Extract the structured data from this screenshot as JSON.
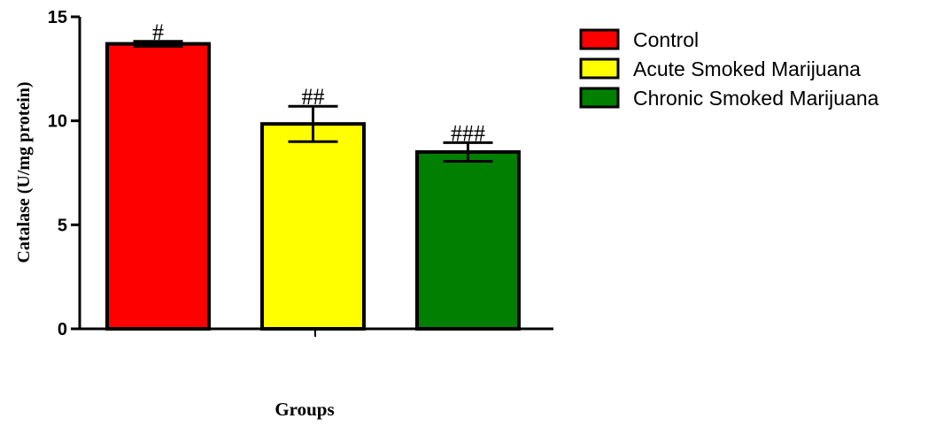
{
  "chart_data": {
    "type": "bar",
    "ylabel": "Catalase (U/mg protein)",
    "xlabel": "Groups",
    "ylim": [
      0,
      15
    ],
    "yticks": [
      0,
      5,
      10,
      15
    ],
    "grid": false,
    "legend_position": "right",
    "series": [
      {
        "name": "Control",
        "value": 13.7,
        "error": 0.12,
        "annotation": "#",
        "color": "#ff0000"
      },
      {
        "name": "Acute Smoked Marijuana",
        "value": 9.85,
        "error": 0.85,
        "annotation": "##",
        "color": "#ffff00"
      },
      {
        "name": "Chronic Smoked Marijuana",
        "value": 8.5,
        "error": 0.45,
        "annotation": "###",
        "color": "#007f00"
      }
    ]
  }
}
